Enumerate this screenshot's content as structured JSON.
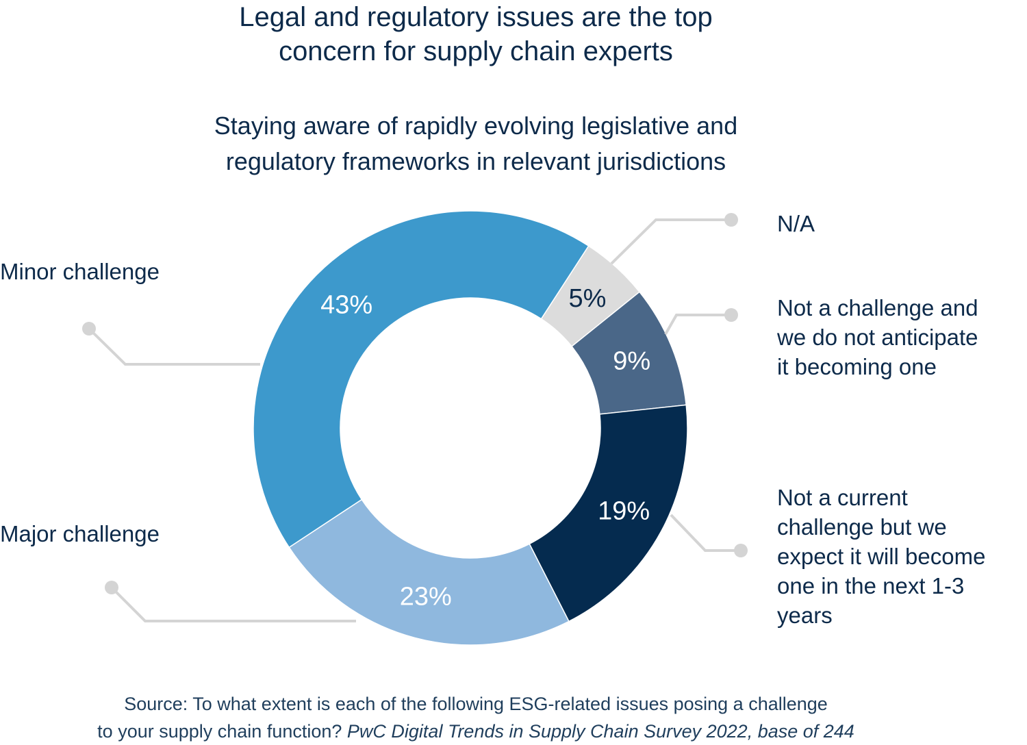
{
  "title_lines": [
    "Legal and regulatory issues are the top",
    "concern for supply chain experts"
  ],
  "subtitle_lines": [
    "Staying aware of rapidly evolving legislative and",
    "regulatory frameworks in relevant jurisdictions"
  ],
  "source": {
    "line1": "Source: To what extent is each of the following ESG-related issues posing a challenge",
    "line2_plain": "to your supply chain function? ",
    "line2_italic": "PwC Digital Trends in Supply Chain Survey 2022, base of 244"
  },
  "legend": {
    "na": [
      "N/A"
    ],
    "not_a_challenge": [
      "Not a challenge and",
      "we do not anticipate",
      "it becoming one"
    ],
    "not_current": [
      "Not a current",
      "challenge but we",
      "expect it will become",
      "one in the next 1-3",
      "years"
    ],
    "minor": [
      "Minor challenge"
    ],
    "major": [
      "Major challenge"
    ]
  },
  "chart_data": {
    "type": "pie",
    "style": "donut",
    "title": "Legal and regulatory issues are the top concern for supply chain experts",
    "subtitle": "Staying aware of rapidly evolving legislative and regulatory frameworks in relevant jurisdictions",
    "slices": [
      {
        "label": "N/A",
        "value": 5,
        "display": "5%",
        "color": "#dcdcdc",
        "text_color": "#0d2a4a"
      },
      {
        "label": "Not a challenge and we do not anticipate it becoming one",
        "value": 9,
        "display": "9%",
        "color": "#4a6788",
        "text_color": "#ffffff"
      },
      {
        "label": "Not a current challenge but we expect it will become one in the next 1-3 years",
        "value": 19,
        "display": "19%",
        "color": "#052b4f",
        "text_color": "#ffffff"
      },
      {
        "label": "Major challenge",
        "value": 23,
        "display": "23%",
        "color": "#8fb8de",
        "text_color": "#ffffff"
      },
      {
        "label": "Minor challenge",
        "value": 43,
        "display": "43%",
        "color": "#3d99cc",
        "text_color": "#ffffff"
      }
    ],
    "start_angle_deg": 33
  },
  "colors": {
    "text": "#0d2a4a",
    "leader_line": "#d4d4d4"
  }
}
